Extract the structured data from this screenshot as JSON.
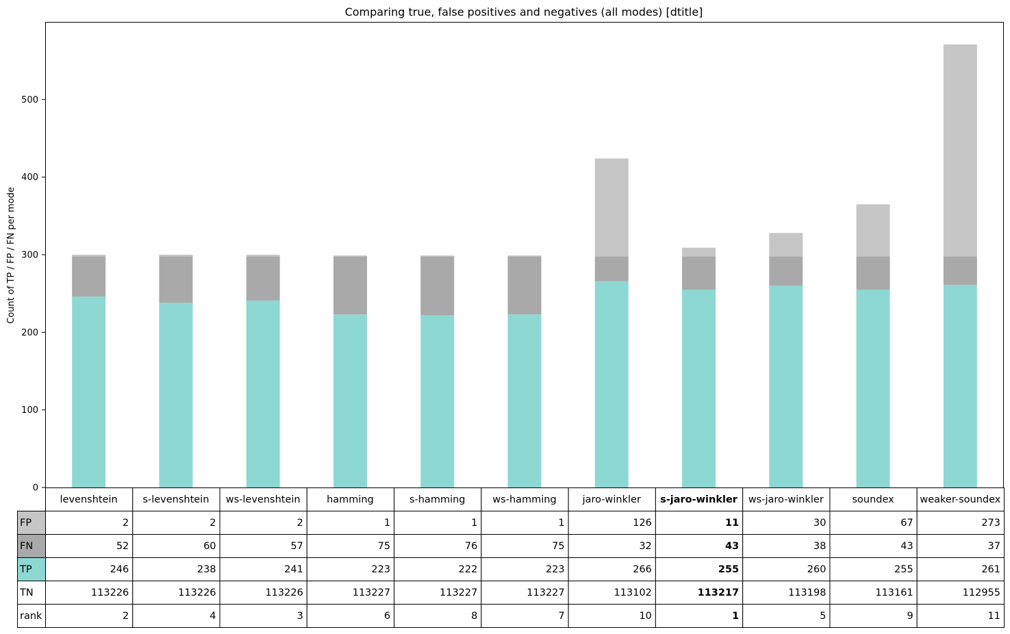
{
  "chart_data": {
    "type": "bar",
    "stacked": true,
    "title": "Comparing true, false positives and negatives (all modes) [dtitle]",
    "xlabel": "",
    "ylabel": "Count of TP / FP / FN per mode",
    "ylim": [
      0,
      600
    ],
    "yticks": [
      0,
      100,
      200,
      300,
      400,
      500
    ],
    "grid": false,
    "categories": [
      "levenshtein",
      "s-levenshtein",
      "ws-levenshtein",
      "hamming",
      "s-hamming",
      "ws-hamming",
      "jaro-winkler",
      "s-jaro-winkler",
      "ws-jaro-winkler",
      "soundex",
      "weaker-soundex"
    ],
    "highlight_category": "s-jaro-winkler",
    "colors": {
      "TP": "#8ed8d3",
      "FN": "#a9a9a9",
      "FP": "#c6c6c6"
    },
    "series": [
      {
        "name": "TP",
        "values": [
          246,
          238,
          241,
          223,
          222,
          223,
          266,
          255,
          260,
          255,
          261
        ]
      },
      {
        "name": "FN",
        "values": [
          52,
          60,
          57,
          75,
          76,
          75,
          32,
          43,
          38,
          43,
          37
        ]
      },
      {
        "name": "FP",
        "values": [
          2,
          2,
          2,
          1,
          1,
          1,
          126,
          11,
          30,
          67,
          273
        ]
      }
    ],
    "table": {
      "rows": [
        {
          "label": "FP",
          "values": [
            "2",
            "2",
            "2",
            "1",
            "1",
            "1",
            "126",
            "11",
            "30",
            "67",
            "273"
          ]
        },
        {
          "label": "FN",
          "values": [
            "52",
            "60",
            "57",
            "75",
            "76",
            "75",
            "32",
            "43",
            "38",
            "43",
            "37"
          ]
        },
        {
          "label": "TP",
          "values": [
            "246",
            "238",
            "241",
            "223",
            "222",
            "223",
            "266",
            "255",
            "260",
            "255",
            "261"
          ]
        },
        {
          "label": "TN",
          "values": [
            "113226",
            "113226",
            "113226",
            "113227",
            "113227",
            "113227",
            "113102",
            "113217",
            "113198",
            "113161",
            "112955"
          ]
        },
        {
          "label": "rank",
          "values": [
            "2",
            "4",
            "3",
            "6",
            "8",
            "7",
            "10",
            "1",
            "5",
            "9",
            "11"
          ]
        }
      ]
    }
  }
}
